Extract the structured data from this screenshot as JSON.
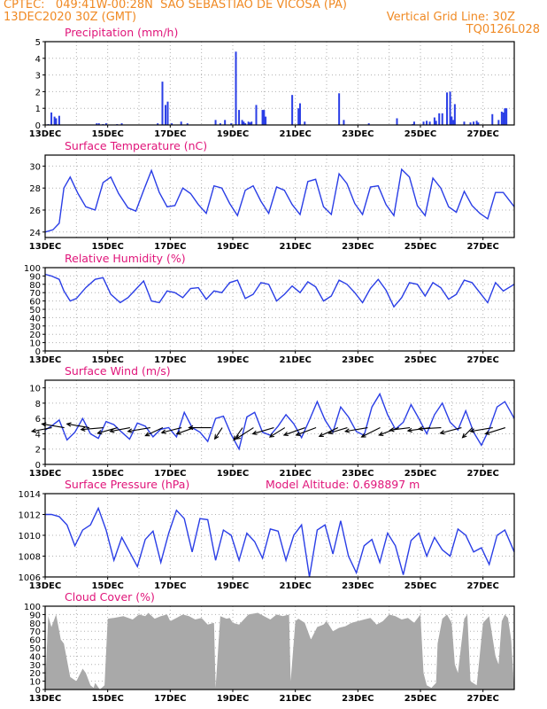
{
  "header": {
    "line1_left": "CPTEC:   049:41W-00:28N  SAO SEBASTIAO DE VICOSA (PA)",
    "line2_left": "13DEC2020 30Z (GMT)",
    "line2_right": "Vertical Grid Line: 30Z",
    "line3_right": "TQ0126L028"
  },
  "colors": {
    "header": "#f08a24",
    "title": "#e0157a",
    "series": "#2a3ee6",
    "cloud": "#a9a9a9",
    "grid": "#b0b0b0"
  },
  "chart_data": [
    {
      "id": "precip",
      "type": "bar",
      "title": "Precipitation (mm/h)",
      "ylim": [
        0,
        5
      ],
      "yticks": [
        0,
        1,
        2,
        3,
        4,
        5
      ],
      "xlim": [
        0,
        15
      ],
      "xticks": [
        0,
        2,
        4,
        6,
        8,
        10,
        12,
        14
      ],
      "xticklabels": [
        "13DEC",
        "15DEC",
        "17DEC",
        "19DEC",
        "21DEC",
        "23DEC",
        "25DEC",
        "27DEC"
      ],
      "x": [
        0.1,
        0.2,
        0.3,
        0.35,
        0.45,
        1.65,
        1.72,
        1.85,
        1.95,
        2.3,
        2.45,
        3.6,
        3.75,
        3.85,
        3.92,
        4.05,
        4.35,
        4.55,
        5.45,
        5.6,
        5.75,
        5.95,
        6.1,
        6.2,
        6.3,
        6.35,
        6.4,
        6.5,
        6.55,
        6.6,
        6.75,
        6.95,
        7.0,
        7.05,
        7.9,
        8.1,
        8.15,
        8.3,
        9.4,
        9.55,
        10.35,
        11.25,
        11.75,
        11.8,
        12.1,
        12.2,
        12.3,
        12.45,
        12.5,
        12.6,
        12.7,
        12.85,
        12.95,
        13.0,
        13.05,
        13.1,
        13.4,
        13.6,
        13.7,
        13.8,
        13.85,
        14.3,
        14.5,
        14.6,
        14.65,
        14.7,
        14.75
      ],
      "values": [
        0.05,
        0.75,
        0.5,
        0.4,
        0.55,
        0.1,
        0.1,
        0.05,
        0.1,
        0.05,
        0.1,
        0.1,
        2.6,
        1.2,
        1.4,
        0.1,
        0.2,
        0.1,
        0.3,
        0.1,
        0.3,
        0.1,
        4.4,
        0.9,
        0.3,
        0.2,
        0.1,
        0.2,
        0.15,
        0.2,
        1.2,
        0.9,
        0.9,
        0.5,
        1.8,
        1.0,
        1.3,
        0.2,
        1.9,
        0.3,
        0.1,
        0.4,
        0.05,
        0.2,
        0.2,
        0.25,
        0.2,
        0.45,
        0.25,
        0.7,
        0.7,
        1.95,
        2.0,
        0.5,
        0.3,
        1.25,
        0.2,
        0.15,
        0.2,
        0.25,
        0.15,
        0.65,
        0.3,
        0.8,
        0.75,
        1.0,
        1.0
      ]
    },
    {
      "id": "temp",
      "type": "line",
      "title": "Surface Temperature (nC)",
      "ylim": [
        23.5,
        31
      ],
      "yticks": [
        24,
        26,
        28,
        30
      ],
      "xlim": [
        0,
        15
      ],
      "xticks": [
        0,
        2,
        4,
        6,
        8,
        10,
        12,
        14
      ],
      "xticklabels": [
        "13DEC",
        "15DEC",
        "17DEC",
        "19DEC",
        "21DEC",
        "23DEC",
        "25DEC",
        "27DEC"
      ],
      "x": [
        0,
        0.25,
        0.45,
        0.6,
        0.8,
        1.05,
        1.3,
        1.6,
        1.85,
        2.1,
        2.35,
        2.65,
        2.9,
        3.15,
        3.4,
        3.65,
        3.9,
        4.15,
        4.4,
        4.65,
        4.9,
        5.15,
        5.4,
        5.65,
        5.9,
        6.15,
        6.4,
        6.65,
        6.9,
        7.15,
        7.4,
        7.65,
        7.9,
        8.15,
        8.4,
        8.65,
        8.9,
        9.15,
        9.4,
        9.65,
        9.9,
        10.15,
        10.4,
        10.65,
        10.9,
        11.15,
        11.4,
        11.65,
        11.9,
        12.15,
        12.4,
        12.65,
        12.9,
        13.15,
        13.4,
        13.65,
        13.9,
        14.15,
        14.4,
        14.65,
        15
      ],
      "values": [
        24.0,
        24.2,
        24.8,
        28.0,
        29.0,
        27.5,
        26.3,
        26.0,
        28.5,
        29.0,
        27.5,
        26.2,
        25.9,
        27.8,
        29.6,
        27.6,
        26.3,
        26.4,
        28.0,
        27.5,
        26.5,
        25.7,
        28.2,
        28.0,
        26.6,
        25.5,
        27.8,
        28.2,
        26.8,
        25.7,
        28.1,
        27.8,
        26.5,
        25.6,
        28.6,
        28.8,
        26.3,
        25.6,
        29.3,
        28.4,
        26.6,
        25.6,
        28.1,
        28.2,
        26.5,
        25.5,
        29.7,
        29.0,
        26.4,
        25.5,
        28.9,
        28.0,
        26.3,
        25.8,
        27.7,
        26.4,
        25.7,
        25.2,
        27.6,
        27.6,
        26.3
      ]
    },
    {
      "id": "rh",
      "type": "line",
      "title": "Relative Humidity (%)",
      "ylim": [
        0,
        100
      ],
      "yticks": [
        0,
        10,
        20,
        30,
        40,
        50,
        60,
        70,
        80,
        90,
        100
      ],
      "xlim": [
        0,
        15
      ],
      "xticks": [
        0,
        2,
        4,
        6,
        8,
        10,
        12,
        14
      ],
      "xticklabels": [
        "13DEC",
        "15DEC",
        "17DEC",
        "19DEC",
        "21DEC",
        "23DEC",
        "25DEC",
        "27DEC"
      ],
      "x": [
        0,
        0.2,
        0.45,
        0.6,
        0.8,
        1.0,
        1.3,
        1.6,
        1.85,
        2.1,
        2.4,
        2.65,
        2.9,
        3.15,
        3.4,
        3.65,
        3.9,
        4.15,
        4.4,
        4.65,
        4.9,
        5.15,
        5.4,
        5.65,
        5.9,
        6.15,
        6.4,
        6.65,
        6.9,
        7.15,
        7.4,
        7.65,
        7.9,
        8.15,
        8.4,
        8.65,
        8.9,
        9.15,
        9.4,
        9.65,
        9.9,
        10.15,
        10.4,
        10.65,
        10.9,
        11.15,
        11.4,
        11.65,
        11.9,
        12.15,
        12.4,
        12.65,
        12.9,
        13.15,
        13.4,
        13.65,
        13.9,
        14.15,
        14.4,
        14.65,
        15
      ],
      "values": [
        92,
        90,
        86,
        72,
        60,
        63,
        76,
        86,
        88,
        68,
        58,
        64,
        74,
        84,
        60,
        58,
        72,
        70,
        64,
        75,
        76,
        62,
        72,
        70,
        82,
        85,
        63,
        68,
        82,
        80,
        60,
        68,
        78,
        70,
        83,
        77,
        60,
        66,
        85,
        80,
        70,
        58,
        75,
        86,
        73,
        53,
        64,
        82,
        80,
        66,
        82,
        76,
        62,
        68,
        85,
        82,
        70,
        58,
        82,
        72,
        80
      ]
    },
    {
      "id": "wind",
      "type": "line",
      "title": "Surface Wind (m/s)",
      "ylim": [
        0,
        11
      ],
      "yticks": [
        0,
        2,
        4,
        6,
        8,
        10
      ],
      "xlim": [
        0,
        15
      ],
      "xticks": [
        0,
        2,
        4,
        6,
        8,
        10,
        12,
        14
      ],
      "xticklabels": [
        "13DEC",
        "15DEC",
        "17DEC",
        "19DEC",
        "21DEC",
        "23DEC",
        "25DEC",
        "27DEC"
      ],
      "x": [
        0,
        0.2,
        0.45,
        0.7,
        0.95,
        1.2,
        1.45,
        1.7,
        1.95,
        2.2,
        2.45,
        2.7,
        2.95,
        3.2,
        3.45,
        3.7,
        3.95,
        4.2,
        4.45,
        4.7,
        4.95,
        5.2,
        5.45,
        5.7,
        5.95,
        6.2,
        6.45,
        6.7,
        6.95,
        7.2,
        7.45,
        7.7,
        7.95,
        8.2,
        8.45,
        8.7,
        8.95,
        9.2,
        9.45,
        9.7,
        9.95,
        10.2,
        10.45,
        10.7,
        10.95,
        11.2,
        11.45,
        11.7,
        11.95,
        12.2,
        12.45,
        12.7,
        12.95,
        13.2,
        13.45,
        13.7,
        13.95,
        14.2,
        14.45,
        14.7,
        15
      ],
      "values": [
        4.5,
        5.0,
        5.8,
        3.2,
        4.2,
        6.0,
        4.0,
        3.4,
        5.6,
        5.2,
        4.2,
        3.3,
        5.4,
        5.0,
        3.6,
        4.6,
        4.8,
        3.6,
        6.8,
        4.8,
        4.2,
        3.0,
        6.0,
        6.3,
        3.9,
        2.0,
        6.2,
        6.8,
        4.2,
        3.8,
        5.0,
        6.5,
        5.3,
        3.5,
        5.8,
        8.2,
        5.8,
        4.2,
        7.5,
        6.2,
        4.3,
        3.8,
        7.5,
        9.2,
        6.5,
        4.6,
        5.5,
        7.8,
        6.0,
        4.0,
        6.5,
        8.0,
        5.5,
        4.5,
        7.0,
        4.2,
        2.5,
        4.6,
        7.5,
        8.2,
        6.0
      ],
      "arrows": [
        {
          "x": 0.1,
          "dx": -1.6,
          "dy": 0.6
        },
        {
          "x": 0.5,
          "dx": -1.8,
          "dy": -0.6
        },
        {
          "x": 1.3,
          "dx": -1.8,
          "dy": -0.6
        },
        {
          "x": 1.75,
          "dx": -1.8,
          "dy": 0.3
        },
        {
          "x": 2.2,
          "dx": -1.6,
          "dy": 0.9
        },
        {
          "x": 2.6,
          "dx": -1.6,
          "dy": 0.6
        },
        {
          "x": 3.25,
          "dx": -1.8,
          "dy": 0.6
        },
        {
          "x": 3.65,
          "dx": -1.4,
          "dy": 1.3
        },
        {
          "x": 4.25,
          "dx": -1.6,
          "dy": 0.8
        },
        {
          "x": 4.65,
          "dx": -1.4,
          "dy": 1.0
        },
        {
          "x": 5.2,
          "dx": -1.8,
          "dy": 0.0
        },
        {
          "x": 5.55,
          "dx": -0.6,
          "dy": 1.8
        },
        {
          "x": 6.2,
          "dx": -0.7,
          "dy": 2.0
        },
        {
          "x": 6.55,
          "dx": -1.4,
          "dy": 1.8
        },
        {
          "x": 7.2,
          "dx": -1.7,
          "dy": 1.0
        },
        {
          "x": 7.55,
          "dx": -1.2,
          "dy": 1.5
        },
        {
          "x": 8.2,
          "dx": -1.7,
          "dy": 1.2
        },
        {
          "x": 8.55,
          "dx": -1.6,
          "dy": 1.2
        },
        {
          "x": 9.25,
          "dx": -1.5,
          "dy": 1.4
        },
        {
          "x": 9.55,
          "dx": -1.5,
          "dy": 0.9
        },
        {
          "x": 10.2,
          "dx": -1.8,
          "dy": 0.6
        },
        {
          "x": 10.6,
          "dx": -1.5,
          "dy": 1.5
        },
        {
          "x": 11.2,
          "dx": -1.6,
          "dy": 1.2
        },
        {
          "x": 11.55,
          "dx": -1.6,
          "dy": 0.4
        },
        {
          "x": 12.2,
          "dx": -1.8,
          "dy": 0.5
        },
        {
          "x": 12.55,
          "dx": -1.8,
          "dy": 0.2
        },
        {
          "x": 13.2,
          "dx": -1.7,
          "dy": 0.9
        },
        {
          "x": 13.55,
          "dx": -0.8,
          "dy": 1.6
        },
        {
          "x": 14.2,
          "dx": -1.8,
          "dy": 0.6
        },
        {
          "x": 14.6,
          "dx": -1.6,
          "dy": 1.0
        }
      ]
    },
    {
      "id": "press",
      "type": "line",
      "title": "Surface Pressure (hPa)",
      "annotation": "Model Altitude: 0.698897  m",
      "ylim": [
        1006,
        1014
      ],
      "yticks": [
        1006,
        1008,
        1010,
        1012,
        1014
      ],
      "xlim": [
        0,
        15
      ],
      "xticks": [
        0,
        2,
        4,
        6,
        8,
        10,
        12,
        14
      ],
      "xticklabels": [
        "13DEC",
        "15DEC",
        "17DEC",
        "19DEC",
        "21DEC",
        "23DEC",
        "25DEC",
        "27DEC"
      ],
      "x": [
        0,
        0.2,
        0.45,
        0.7,
        0.95,
        1.2,
        1.45,
        1.7,
        1.95,
        2.2,
        2.45,
        2.7,
        2.95,
        3.2,
        3.45,
        3.7,
        3.95,
        4.2,
        4.45,
        4.7,
        4.95,
        5.2,
        5.45,
        5.7,
        5.95,
        6.2,
        6.45,
        6.7,
        6.95,
        7.2,
        7.45,
        7.7,
        7.95,
        8.2,
        8.45,
        8.7,
        8.95,
        9.2,
        9.45,
        9.7,
        9.95,
        10.2,
        10.45,
        10.7,
        10.95,
        11.2,
        11.45,
        11.7,
        11.95,
        12.2,
        12.45,
        12.7,
        12.95,
        13.2,
        13.45,
        13.7,
        13.95,
        14.2,
        14.45,
        14.7,
        15
      ],
      "values": [
        1012.0,
        1012.0,
        1011.8,
        1011.0,
        1009.0,
        1010.5,
        1011.0,
        1012.6,
        1010.5,
        1007.6,
        1009.8,
        1008.4,
        1007.0,
        1009.6,
        1010.4,
        1007.4,
        1010.2,
        1012.4,
        1011.6,
        1008.4,
        1011.6,
        1011.5,
        1007.6,
        1010.5,
        1010.0,
        1007.6,
        1010.2,
        1009.4,
        1007.8,
        1010.6,
        1010.4,
        1007.6,
        1010.0,
        1011.0,
        1006.0,
        1010.5,
        1011.0,
        1008.2,
        1011.4,
        1008.0,
        1006.4,
        1009.0,
        1009.6,
        1007.4,
        1010.2,
        1009.0,
        1006.2,
        1009.5,
        1010.2,
        1008.0,
        1009.8,
        1008.6,
        1008.0,
        1010.6,
        1010.0,
        1008.4,
        1008.8,
        1007.2,
        1010.0,
        1010.5,
        1008.4
      ]
    },
    {
      "id": "cloud",
      "type": "area",
      "title": "Cloud Cover (%)",
      "ylim": [
        0,
        100
      ],
      "yticks": [
        0,
        10,
        20,
        30,
        40,
        50,
        60,
        70,
        80,
        90,
        100
      ],
      "xlim": [
        0,
        15
      ],
      "xticks": [
        0,
        2,
        4,
        6,
        8,
        10,
        12,
        14
      ],
      "xticklabels": [
        "13DEC",
        "15DEC",
        "17DEC",
        "19DEC",
        "21DEC",
        "23DEC",
        "25DEC",
        "27DEC"
      ],
      "x": [
        0,
        0.1,
        0.2,
        0.35,
        0.5,
        0.6,
        0.8,
        1.0,
        1.2,
        1.3,
        1.45,
        1.55,
        1.6,
        1.75,
        1.9,
        2.0,
        2.2,
        2.5,
        2.8,
        3.0,
        3.2,
        3.3,
        3.5,
        3.7,
        3.9,
        4.0,
        4.2,
        4.4,
        4.6,
        4.8,
        5.0,
        5.2,
        5.4,
        5.45,
        5.6,
        5.8,
        5.9,
        6.0,
        6.2,
        6.5,
        6.8,
        7.0,
        7.2,
        7.4,
        7.6,
        7.8,
        7.85,
        8.0,
        8.1,
        8.3,
        8.5,
        8.7,
        8.9,
        9.0,
        9.2,
        9.4,
        9.6,
        9.8,
        10.0,
        10.2,
        10.4,
        10.6,
        10.8,
        11.0,
        11.2,
        11.4,
        11.6,
        11.8,
        12.0,
        12.1,
        12.2,
        12.35,
        12.5,
        12.55,
        12.7,
        12.85,
        13.0,
        13.1,
        13.2,
        13.4,
        13.5,
        13.6,
        13.8,
        14.0,
        14.2,
        14.4,
        14.5,
        14.6,
        14.7,
        14.8,
        14.9,
        15
      ],
      "values": [
        0,
        88,
        75,
        90,
        60,
        55,
        15,
        10,
        25,
        20,
        5,
        2,
        8,
        0,
        5,
        85,
        86,
        88,
        84,
        90,
        88,
        92,
        85,
        88,
        90,
        82,
        86,
        90,
        88,
        84,
        86,
        78,
        80,
        2,
        88,
        85,
        86,
        80,
        78,
        90,
        92,
        88,
        84,
        90,
        88,
        90,
        10,
        82,
        85,
        80,
        60,
        75,
        78,
        82,
        70,
        74,
        76,
        80,
        82,
        84,
        86,
        78,
        82,
        90,
        88,
        84,
        86,
        80,
        90,
        20,
        5,
        2,
        8,
        55,
        85,
        90,
        80,
        30,
        20,
        85,
        90,
        10,
        5,
        80,
        88,
        40,
        30,
        82,
        90,
        86,
        60,
        0
      ]
    }
  ]
}
